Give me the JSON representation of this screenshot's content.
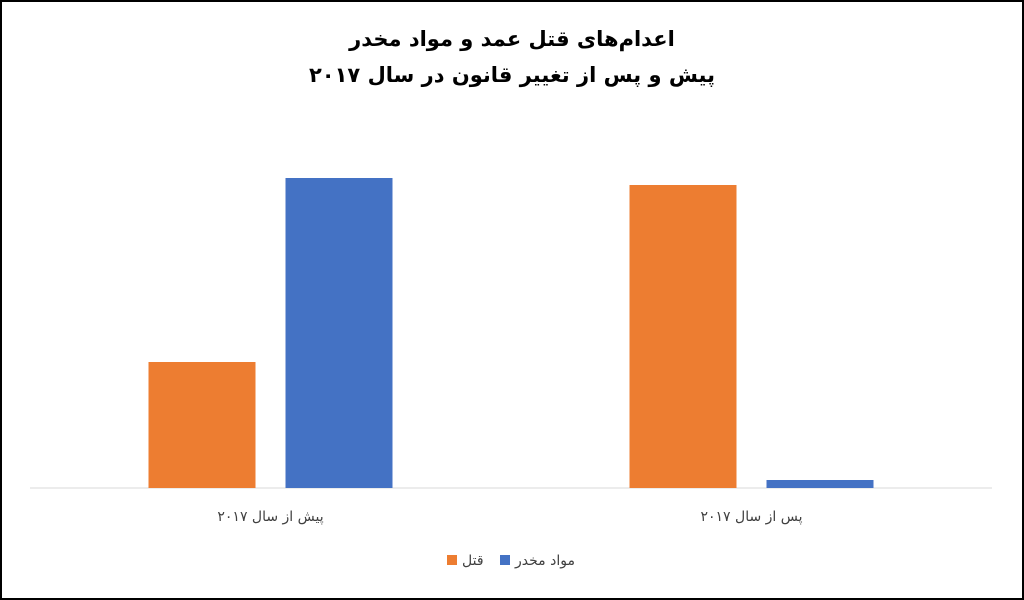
{
  "chart_data": {
    "type": "bar",
    "title": "اعدام‌های قتل عمد و مواد مخدر",
    "subtitle": "پیش و پس از تغییر قانون در سال ۲۰۱۷",
    "categories": [
      "پیش از سال ۲۰۱۷",
      "پس از سال ۲۰۱۷"
    ],
    "series": [
      {
        "name": "قتل",
        "color": "#ed7d31",
        "values": [
          126,
          303
        ]
      },
      {
        "name": "مواد مخدر",
        "color": "#4472c4",
        "values": [
          310,
          8
        ]
      }
    ]
  }
}
